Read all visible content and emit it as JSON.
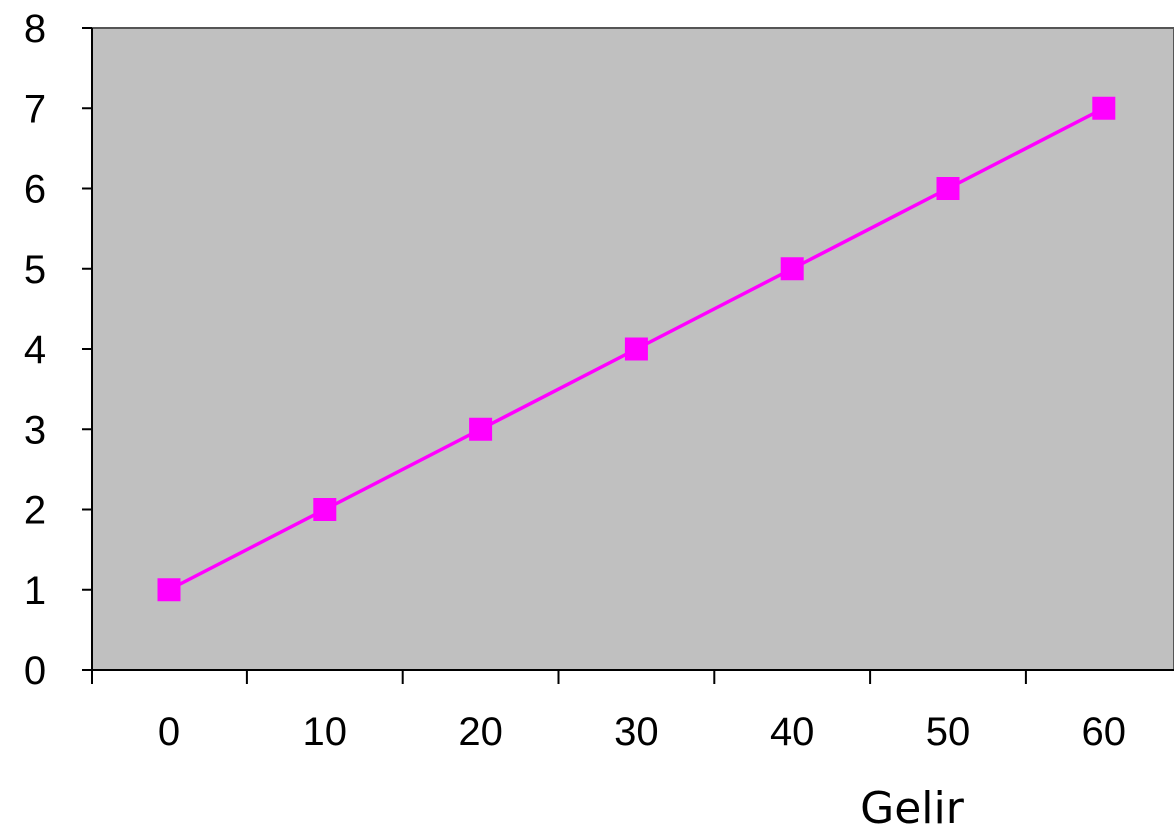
{
  "chart_data": {
    "type": "line",
    "title": "",
    "xlabel": "Gelir",
    "ylabel": "",
    "x_tick_labels": [
      "0",
      "10",
      "20",
      "30",
      "40",
      "50",
      "60"
    ],
    "y_tick_labels": [
      "0",
      "1",
      "2",
      "3",
      "4",
      "5",
      "6",
      "7",
      "8"
    ],
    "xlim": [
      0,
      60
    ],
    "ylim": [
      0,
      8
    ],
    "grid": false,
    "legend": "none",
    "series": [
      {
        "x": [
          0,
          10,
          20,
          30,
          40,
          50,
          60
        ],
        "values": [
          1,
          2,
          3,
          4,
          5,
          6,
          7
        ],
        "marker": "square"
      }
    ]
  },
  "colors": {
    "plot_background": "#c0c0c0",
    "series_line": "#ff00ff",
    "axis": "#000000",
    "page_background": "#ffffff"
  }
}
